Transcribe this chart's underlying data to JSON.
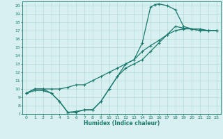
{
  "xlabel": "Humidex (Indice chaleur)",
  "bg_color": "#d8f0f0",
  "line_color": "#1a7a6e",
  "grid_color": "#b8dada",
  "xlim": [
    -0.5,
    23.5
  ],
  "ylim": [
    7,
    20.5
  ],
  "xticks": [
    0,
    1,
    2,
    3,
    4,
    5,
    6,
    7,
    8,
    9,
    10,
    11,
    12,
    13,
    14,
    15,
    16,
    17,
    18,
    19,
    20,
    21,
    22,
    23
  ],
  "yticks": [
    7,
    8,
    9,
    10,
    11,
    12,
    13,
    14,
    15,
    16,
    17,
    18,
    19,
    20
  ],
  "line1_x": [
    0,
    1,
    2,
    3,
    4,
    5,
    6,
    7,
    8,
    9,
    10,
    11,
    12,
    13,
    14,
    15,
    15.5,
    16,
    17,
    18,
    19,
    20,
    21,
    22,
    23
  ],
  "line1_y": [
    9.5,
    10,
    10,
    9.5,
    8.5,
    7.2,
    7.2,
    7.5,
    7.5,
    8.5,
    10.0,
    11.5,
    13.0,
    13.5,
    15.5,
    19.8,
    20.1,
    20.2,
    20.0,
    19.5,
    17.5,
    17.2,
    17.0,
    17.0,
    17.0
  ],
  "line2_x": [
    0,
    1,
    2,
    3,
    4,
    5,
    6,
    7,
    8,
    9,
    10,
    11,
    12,
    13,
    14,
    15,
    16,
    17,
    18,
    19,
    20,
    21,
    22,
    23
  ],
  "line2_y": [
    9.5,
    10,
    10,
    10,
    10,
    10.2,
    10.5,
    10.5,
    11,
    11.5,
    12,
    12.5,
    13,
    13.5,
    14.5,
    15.2,
    15.8,
    16.5,
    17.0,
    17.2,
    17.2,
    17.2,
    17.0,
    17.0
  ],
  "line3_x": [
    0,
    1,
    2,
    3,
    4,
    5,
    6,
    7,
    8,
    9,
    10,
    11,
    12,
    13,
    14,
    15,
    16,
    17,
    18,
    19,
    20,
    21,
    22,
    23
  ],
  "line3_y": [
    9.5,
    9.8,
    9.8,
    9.5,
    8.5,
    7.2,
    7.3,
    7.5,
    7.5,
    8.5,
    10.0,
    11.5,
    12.5,
    13.0,
    13.5,
    14.5,
    15.5,
    16.5,
    17.5,
    17.3,
    17.2,
    17.0,
    17.0,
    17.0
  ]
}
